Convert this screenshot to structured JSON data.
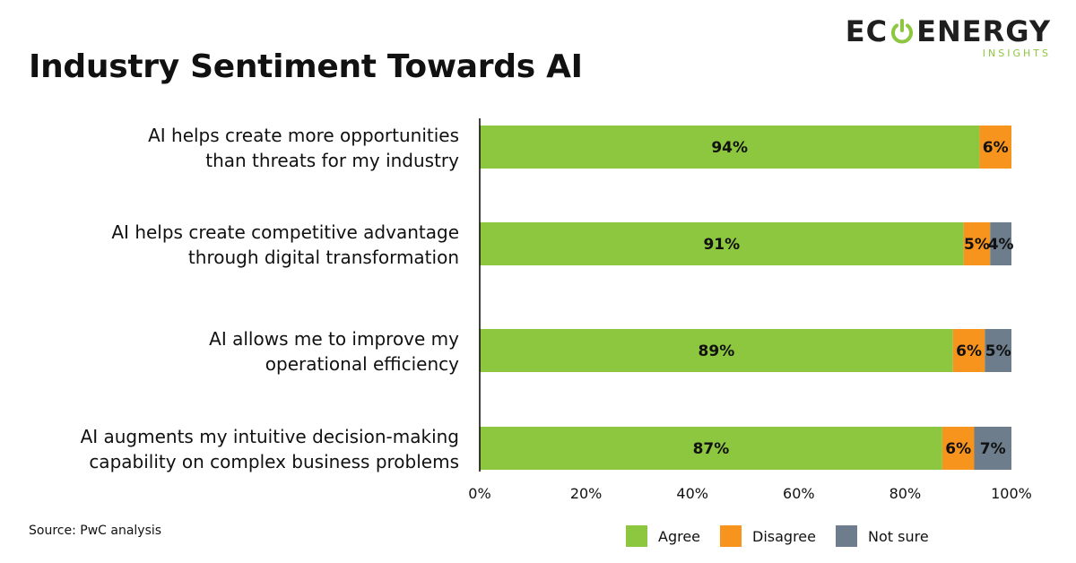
{
  "title": "Industry Sentiment Towards AI",
  "logo": {
    "main_left": "EC",
    "main_right": "ENERGY",
    "sub": "INSIGHTS"
  },
  "source": "Source: PwC analysis",
  "colors": {
    "agree": "#8dc63f",
    "disagree": "#f7941d",
    "not_sure": "#6d7d8b",
    "axis": "#000000",
    "logo_green": "#8dc63f"
  },
  "chart_data": {
    "type": "bar",
    "orientation": "horizontal",
    "stacked": true,
    "categories": [
      [
        "AI helps create more opportunities",
        "than threats for my industry"
      ],
      [
        "AI helps create competitive advantage",
        "through digital transformation"
      ],
      [
        "AI allows me to improve my",
        "operational efficiency"
      ],
      [
        "AI augments my intuitive decision-making",
        "capability on complex business problems"
      ]
    ],
    "series": [
      {
        "name": "Agree",
        "color": "#8dc63f",
        "values": [
          94,
          91,
          89,
          87
        ],
        "labels": [
          "94%",
          "91%",
          "89%",
          "87%"
        ]
      },
      {
        "name": "Disagree",
        "color": "#f7941d",
        "values": [
          6,
          5,
          6,
          6
        ],
        "labels": [
          "6%",
          "5%",
          "6%",
          "6%"
        ]
      },
      {
        "name": "Not sure",
        "color": "#6d7d8b",
        "values": [
          0,
          4,
          5,
          7
        ],
        "labels": [
          "",
          "4%",
          "5%",
          "7%"
        ]
      }
    ],
    "xlim": [
      0,
      100
    ],
    "xticks": [
      0,
      20,
      40,
      60,
      80,
      100
    ],
    "xtick_labels": [
      "0%",
      "20%",
      "40%",
      "60%",
      "80%",
      "100%"
    ],
    "grid": false,
    "legend": {
      "position": "bottom-right",
      "entries": [
        "Agree",
        "Disagree",
        "Not sure"
      ]
    }
  }
}
